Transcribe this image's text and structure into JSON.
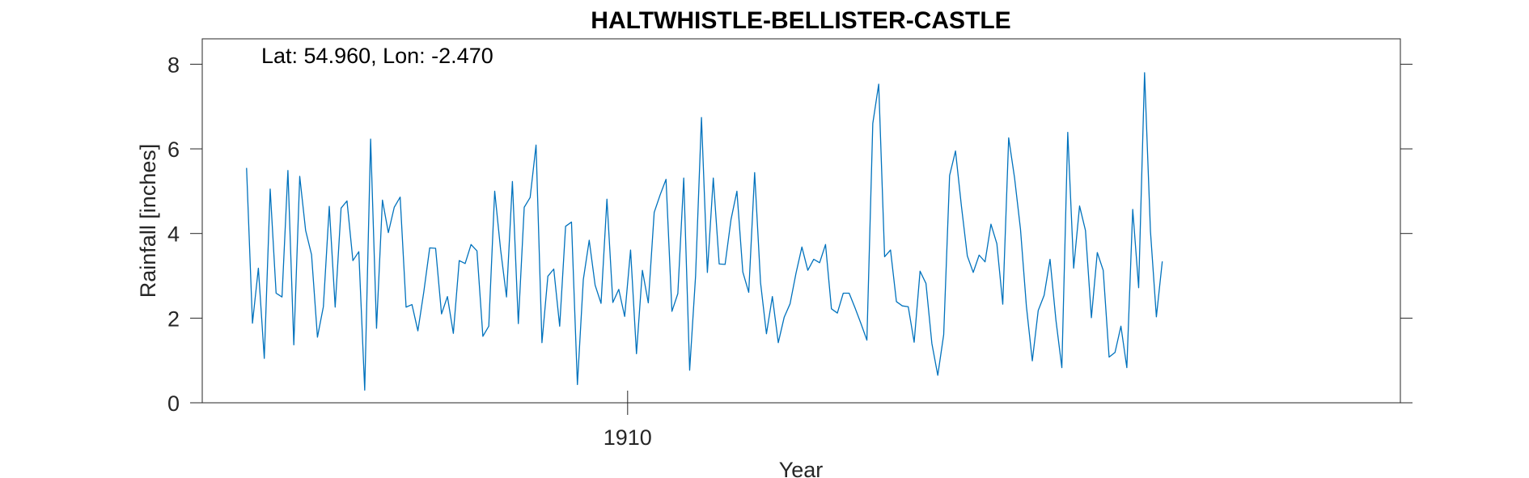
{
  "chart_data": {
    "type": "line",
    "title": "HALTWHISTLE-BELLISTER-CASTLE",
    "annotation": "Lat: 54.960, Lon: -2.470",
    "xlabel": "Year",
    "ylabel": "Rainfall [inches]",
    "x_ticks": [
      {
        "value": 1910,
        "label": "1910"
      }
    ],
    "y_ticks": [
      0,
      2,
      4,
      6,
      8
    ],
    "xlim": [
      1904.0,
      1920.9
    ],
    "ylim": [
      0,
      8.6
    ],
    "grid": false,
    "series": [
      {
        "color": "#0072BD",
        "x_start": 1904.625,
        "x_step": 0.0833333,
        "values": [
          5.55,
          1.88,
          3.18,
          1.05,
          5.05,
          2.59,
          2.5,
          5.49,
          1.37,
          5.35,
          4.07,
          3.5,
          1.55,
          2.27,
          4.64,
          2.26,
          4.6,
          4.77,
          3.36,
          3.57,
          0.3,
          6.23,
          1.76,
          4.79,
          4.02,
          4.62,
          4.86,
          2.26,
          2.32,
          1.7,
          2.62,
          3.66,
          3.65,
          2.1,
          2.51,
          1.64,
          3.36,
          3.29,
          3.74,
          3.59,
          1.57,
          1.81,
          5.0,
          3.62,
          2.5,
          5.23,
          1.87,
          4.62,
          4.85,
          6.09,
          1.42,
          2.99,
          3.16,
          1.81,
          4.17,
          4.27,
          0.43,
          2.91,
          3.84,
          2.78,
          2.35,
          4.81,
          2.37,
          2.68,
          2.04,
          3.61,
          1.16,
          3.13,
          2.36,
          4.5,
          4.91,
          5.28,
          2.16,
          2.58,
          5.31,
          0.77,
          2.99,
          6.74,
          3.08,
          5.31,
          3.28,
          3.27,
          4.33,
          5.0,
          3.09,
          2.61,
          5.44,
          2.84,
          1.63,
          2.51,
          1.42,
          2.02,
          2.34,
          3.06,
          3.68,
          3.13,
          3.39,
          3.31,
          3.74,
          2.22,
          2.12,
          2.59,
          2.59,
          2.24,
          1.87,
          1.48,
          6.6,
          7.53,
          3.45,
          3.61,
          2.39,
          2.29,
          2.27,
          1.43,
          3.11,
          2.82,
          1.4,
          0.65,
          1.61,
          5.37,
          5.95,
          4.65,
          3.47,
          3.08,
          3.49,
          3.33,
          4.22,
          3.76,
          2.33,
          6.26,
          5.31,
          4.1,
          2.28,
          0.99,
          2.18,
          2.54,
          3.39,
          1.95,
          0.83,
          6.39,
          3.18,
          4.65,
          4.07,
          2.01,
          3.55,
          3.13,
          1.08,
          1.19,
          1.81,
          0.83,
          4.57,
          2.72,
          7.8,
          4.05,
          2.03,
          3.34
        ]
      }
    ]
  }
}
